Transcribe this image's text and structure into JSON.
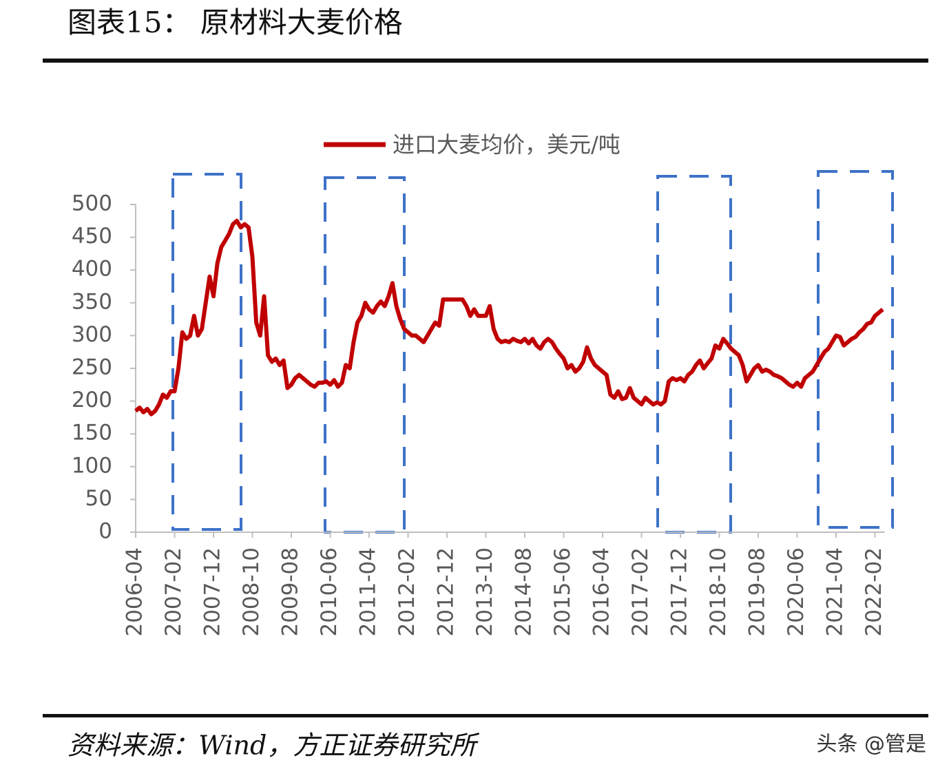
{
  "chart_data": {
    "type": "line",
    "title": "图表15：  原材料大麦价格",
    "categories": [
      "2006-04",
      null,
      null,
      null,
      null,
      null,
      null,
      null,
      null,
      null,
      "2007-02",
      null,
      null,
      null,
      null,
      null,
      null,
      null,
      null,
      null,
      "2007-12",
      null,
      null,
      null,
      null,
      null,
      null,
      null,
      null,
      null,
      "2008-10",
      null,
      null,
      null,
      null,
      null,
      null,
      null,
      null,
      null,
      "2009-08",
      null,
      null,
      null,
      null,
      null,
      null,
      null,
      null,
      null,
      "2010-06",
      null,
      null,
      null,
      null,
      null,
      null,
      null,
      null,
      null,
      "2011-04",
      null,
      null,
      null,
      null,
      null,
      null,
      null,
      null,
      null,
      "2012-02",
      null,
      null,
      null,
      null,
      null,
      null,
      null,
      null,
      null,
      "2012-12",
      null,
      null,
      null,
      null,
      null,
      null,
      null,
      null,
      null,
      "2013-10",
      null,
      null,
      null,
      null,
      null,
      null,
      null,
      null,
      null,
      "2014-08",
      null,
      null,
      null,
      null,
      null,
      null,
      null,
      null,
      null,
      "2015-06",
      null,
      null,
      null,
      null,
      null,
      null,
      null,
      null,
      null,
      "2016-04",
      null,
      null,
      null,
      null,
      null,
      null,
      null,
      null,
      null,
      "2017-02",
      null,
      null,
      null,
      null,
      null,
      null,
      null,
      null,
      null,
      "2017-12",
      null,
      null,
      null,
      null,
      null,
      null,
      null,
      null,
      null,
      "2018-10",
      null,
      null,
      null,
      null,
      null,
      null,
      null,
      null,
      null,
      "2019-08",
      null,
      null,
      null,
      null,
      null,
      null,
      null,
      null,
      null,
      "2020-06",
      null,
      null,
      null,
      null,
      null,
      null,
      null,
      null,
      null,
      "2021-04",
      null,
      null,
      null,
      null,
      null,
      null,
      null,
      null,
      null,
      "2022-02",
      null,
      null
    ],
    "series": [
      {
        "name": "进口大麦均价，美元/吨",
        "color": "#c00000",
        "values": [
          185,
          190,
          183,
          188,
          180,
          185,
          195,
          210,
          205,
          215,
          215,
          250,
          305,
          295,
          300,
          330,
          300,
          310,
          350,
          390,
          360,
          410,
          435,
          445,
          455,
          470,
          475,
          465,
          470,
          465,
          420,
          320,
          300,
          360,
          270,
          260,
          265,
          255,
          262,
          220,
          225,
          235,
          240,
          235,
          230,
          225,
          222,
          228,
          228,
          230,
          225,
          232,
          222,
          228,
          255,
          250,
          290,
          320,
          330,
          350,
          340,
          335,
          345,
          352,
          345,
          360,
          380,
          345,
          325,
          310,
          305,
          300,
          300,
          295,
          290,
          300,
          310,
          320,
          315,
          355,
          355,
          355,
          355,
          355,
          355,
          345,
          330,
          340,
          330,
          330,
          330,
          345,
          310,
          295,
          290,
          292,
          290,
          295,
          292,
          290,
          295,
          288,
          295,
          285,
          280,
          290,
          295,
          290,
          280,
          272,
          265,
          250,
          255,
          245,
          250,
          260,
          282,
          265,
          255,
          250,
          245,
          240,
          210,
          205,
          215,
          203,
          205,
          220,
          205,
          200,
          195,
          205,
          200,
          195,
          198,
          195,
          200,
          230,
          235,
          232,
          235,
          230,
          240,
          245,
          255,
          262,
          250,
          258,
          265,
          285,
          280,
          295,
          288,
          280,
          275,
          270,
          255,
          230,
          240,
          250,
          255,
          245,
          248,
          245,
          240,
          238,
          235,
          230,
          225,
          222,
          228,
          222,
          235,
          240,
          245,
          255,
          265,
          275,
          280,
          290,
          300,
          298,
          285,
          290,
          295,
          298,
          305,
          310,
          318,
          320,
          330,
          335,
          340
        ]
      }
    ],
    "ylim": [
      0,
      500
    ],
    "yticks": [
      0,
      50,
      100,
      150,
      200,
      250,
      300,
      350,
      400,
      450,
      500
    ],
    "grid": false
  },
  "source": "资料来源：Wind，方正证券研究所",
  "watermark": "头条 @管是"
}
